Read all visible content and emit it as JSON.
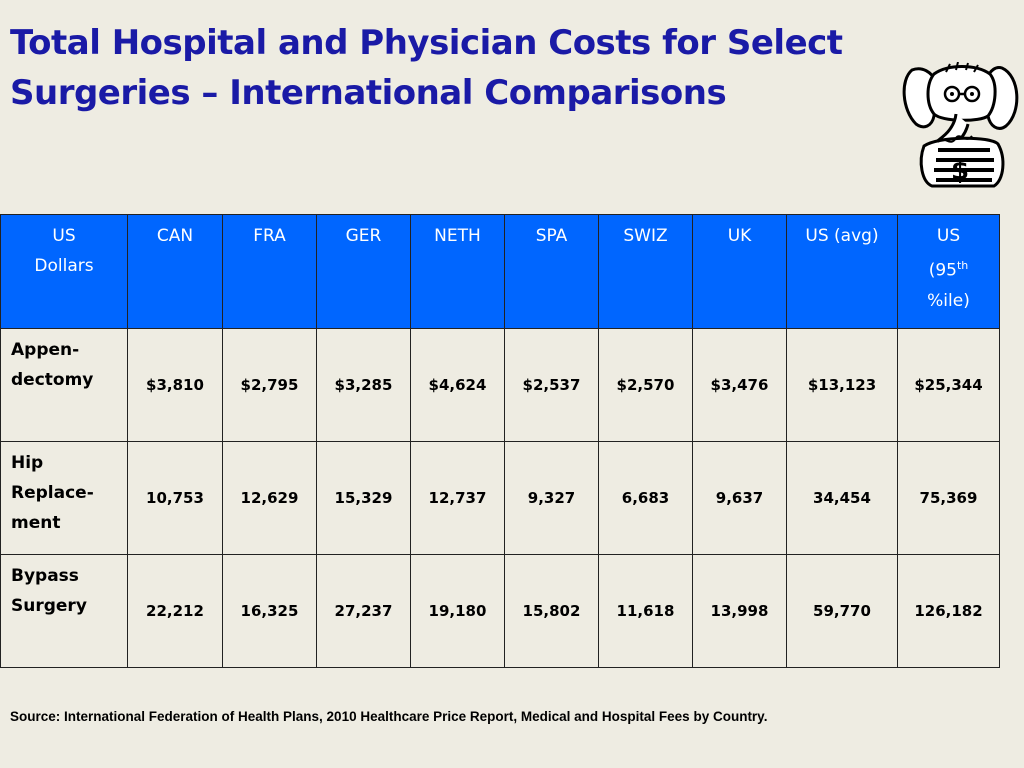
{
  "title": {
    "line1": "Total Hospital and Physician Costs for Select",
    "line2": "Surgeries – International Comparisons"
  },
  "logo": {
    "icon": "elephant-cartoon-icon"
  },
  "table": {
    "headers": {
      "corner_line1": "US",
      "corner_line2": "Dollars",
      "can": "CAN",
      "fra": "FRA",
      "ger": "GER",
      "neth": "NETH",
      "spa": "SPA",
      "swiz": "SWIZ",
      "uk": "UK",
      "us_avg": "US (avg)",
      "us95_line1": "US",
      "us95_line2_pre": "(95",
      "us95_sup": "th",
      "us95_line3": "%ile)"
    },
    "rows": [
      {
        "label_line1": "Appen-",
        "label_line2": "dectomy",
        "label_line3": "",
        "values": [
          "$3,810",
          "$2,795",
          "$3,285",
          "$4,624",
          "$2,537",
          "$2,570",
          "$3,476",
          "$13,123",
          "$25,344"
        ]
      },
      {
        "label_line1": "Hip",
        "label_line2": "Replace-",
        "label_line3": "ment",
        "values": [
          "10,753",
          "12,629",
          "15,329",
          "12,737",
          "9,327",
          "6,683",
          "9,637",
          "34,454",
          "75,369"
        ]
      },
      {
        "label_line1": "Bypass",
        "label_line2": "Surgery",
        "label_line3": "",
        "values": [
          "22,212",
          "16,325",
          "27,237",
          "19,180",
          "15,802",
          "11,618",
          "13,998",
          "59,770",
          "126,182"
        ]
      }
    ]
  },
  "source": "Source: International Federation of Health Plans, 2010 Healthcare Price Report, Medical and Hospital Fees by Country.",
  "colors": {
    "title": "#1a1aa6",
    "header_bg": "#0066ff",
    "background": "#eeece2"
  }
}
